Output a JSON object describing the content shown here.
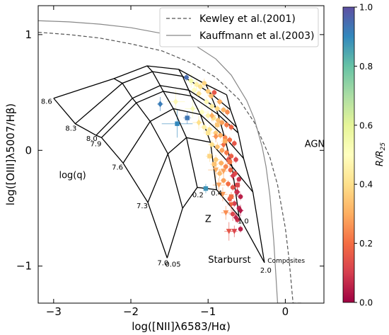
{
  "chart_data": {
    "type": "scatter",
    "title": "",
    "xlabel": "log([NII]λ6583/Hα)",
    "ylabel": "log([OIII]λ5007/Hβ)",
    "xlim": [
      -3.2,
      0.5
    ],
    "ylim": [
      -1.32,
      1.25
    ],
    "x_ticks": [
      -3,
      -2,
      -1,
      0
    ],
    "x_tick_labels": [
      "−3",
      "−2",
      "−1",
      "0"
    ],
    "y_ticks": [
      -1,
      0,
      1
    ],
    "y_tick_labels": [
      "−1",
      "0",
      "1"
    ],
    "legend": {
      "position": "top-right",
      "entries": [
        {
          "label": "Kewley et al.(2001)",
          "style": "dashed"
        },
        {
          "label": "Kauffmann et al.(2003)",
          "style": "solid"
        }
      ]
    },
    "colorbar": {
      "label": "R/R",
      "label_sub": "25",
      "range": [
        0.0,
        1.0
      ],
      "ticks": [
        0.0,
        0.2,
        0.4,
        0.6,
        0.8,
        1.0
      ],
      "tick_labels": [
        "0.0",
        "0.2",
        "0.4",
        "0.6",
        "0.8",
        "1.0"
      ],
      "colormap": "Spectral"
    },
    "annotations": {
      "agn": "AGN",
      "starburst": "Starburst",
      "composites": "Composites",
      "log_q": "log(q)",
      "z": "Z"
    },
    "grid": {
      "logq_labels": [
        "8.6",
        "8.3",
        "8.0",
        "7.9",
        "7.6",
        "7.3",
        "7.0"
      ],
      "z_labels": [
        "0.05",
        "0.2",
        "0.4",
        "1.0",
        "2.0"
      ],
      "logq_lines": [
        [
          [
            -3.0,
            0.45
          ],
          [
            -2.22,
            0.62
          ],
          [
            -1.79,
            0.73
          ],
          [
            -1.38,
            0.7
          ],
          [
            -1.03,
            0.57
          ],
          [
            -0.76,
            0.48
          ]
        ],
        [
          [
            -2.72,
            0.23
          ],
          [
            -2.11,
            0.58
          ],
          [
            -1.72,
            0.68
          ],
          [
            -1.33,
            0.64
          ],
          [
            -0.98,
            0.5
          ],
          [
            -0.71,
            0.35
          ]
        ],
        [
          [
            -2.45,
            0.13
          ],
          [
            -1.98,
            0.45
          ],
          [
            -1.62,
            0.56
          ],
          [
            -1.25,
            0.52
          ],
          [
            -0.9,
            0.37
          ],
          [
            -0.63,
            0.2
          ]
        ],
        [
          [
            -2.38,
            0.11
          ],
          [
            -1.93,
            0.41
          ],
          [
            -1.58,
            0.51
          ],
          [
            -1.22,
            0.47
          ],
          [
            -0.87,
            0.31
          ],
          [
            -0.61,
            0.15
          ]
        ],
        [
          [
            -2.1,
            -0.11
          ],
          [
            -1.75,
            0.25
          ],
          [
            -1.45,
            0.36
          ],
          [
            -1.1,
            0.31
          ],
          [
            -0.79,
            0.12
          ],
          [
            -0.54,
            -0.07
          ]
        ],
        [
          [
            -1.78,
            -0.45
          ],
          [
            -1.52,
            -0.03
          ],
          [
            -1.28,
            0.11
          ],
          [
            -0.97,
            0.07
          ],
          [
            -0.69,
            -0.14
          ],
          [
            -0.42,
            -0.36
          ]
        ],
        [
          [
            -1.53,
            -0.93
          ],
          [
            -1.33,
            -0.5
          ],
          [
            -1.14,
            -0.32
          ],
          [
            -0.89,
            -0.34
          ],
          [
            -0.6,
            -0.57
          ],
          [
            -0.27,
            -0.97
          ]
        ]
      ],
      "z_lines": [
        [
          [
            -3.0,
            0.45
          ],
          [
            -2.72,
            0.23
          ],
          [
            -2.45,
            0.13
          ],
          [
            -2.38,
            0.11
          ],
          [
            -2.1,
            -0.11
          ],
          [
            -1.78,
            -0.45
          ],
          [
            -1.53,
            -0.93
          ]
        ],
        [
          [
            -2.22,
            0.62
          ],
          [
            -2.11,
            0.58
          ],
          [
            -1.98,
            0.45
          ],
          [
            -1.93,
            0.41
          ],
          [
            -1.75,
            0.25
          ],
          [
            -1.52,
            -0.03
          ],
          [
            -1.33,
            -0.5
          ]
        ],
        [
          [
            -1.79,
            0.73
          ],
          [
            -1.72,
            0.68
          ],
          [
            -1.62,
            0.56
          ],
          [
            -1.58,
            0.51
          ],
          [
            -1.45,
            0.36
          ],
          [
            -1.28,
            0.11
          ],
          [
            -1.14,
            -0.32
          ]
        ],
        [
          [
            -1.38,
            0.7
          ],
          [
            -1.33,
            0.64
          ],
          [
            -1.25,
            0.52
          ],
          [
            -1.22,
            0.47
          ],
          [
            -1.1,
            0.31
          ],
          [
            -0.97,
            0.07
          ],
          [
            -0.89,
            -0.34
          ]
        ],
        [
          [
            -1.03,
            0.57
          ],
          [
            -0.98,
            0.5
          ],
          [
            -0.9,
            0.37
          ],
          [
            -0.87,
            0.31
          ],
          [
            -0.79,
            0.12
          ],
          [
            -0.69,
            -0.14
          ],
          [
            -0.6,
            -0.57
          ]
        ],
        [
          [
            -0.76,
            0.48
          ],
          [
            -0.71,
            0.35
          ],
          [
            -0.63,
            0.2
          ],
          [
            -0.61,
            0.15
          ],
          [
            -0.54,
            -0.07
          ],
          [
            -0.42,
            -0.36
          ],
          [
            -0.27,
            -0.97
          ]
        ]
      ]
    },
    "series": [
      {
        "name": "Kewley et al.(2001)",
        "style": "dashed",
        "color": "#555555",
        "x": [
          -3.2,
          -2.8,
          -2.4,
          -2.0,
          -1.6,
          -1.2,
          -0.9,
          -0.6,
          -0.4,
          -0.2,
          -0.1,
          0.0,
          0.05,
          0.1,
          0.15,
          0.2,
          0.23
        ],
        "y": [
          1.02,
          1.0,
          0.97,
          0.92,
          0.86,
          0.75,
          0.63,
          0.44,
          0.24,
          -0.06,
          -0.3,
          -0.67,
          -0.95,
          -1.32,
          -1.32,
          -1.32,
          -1.32
        ]
      },
      {
        "name": "Kauffmann et al.(2003)",
        "style": "solid",
        "color": "#888888",
        "x": [
          -3.2,
          -2.8,
          -2.4,
          -2.0,
          -1.6,
          -1.2,
          -0.9,
          -0.7,
          -0.5,
          -0.4,
          -0.3,
          -0.25,
          -0.2,
          -0.15,
          -0.1,
          -0.07
        ],
        "y": [
          1.12,
          1.11,
          1.09,
          1.06,
          1.01,
          0.92,
          0.79,
          0.65,
          0.43,
          0.27,
          0.03,
          -0.14,
          -0.39,
          -0.78,
          -1.32,
          -1.32
        ]
      }
    ],
    "points": [
      {
        "x": -1.28,
        "y": 0.63,
        "c": 0.95,
        "m": "o",
        "xe": 0.03,
        "ye": 0.03
      },
      {
        "x": -1.22,
        "y": 0.6,
        "c": 0.55,
        "m": "o",
        "xe": 0.06,
        "ye": 0.06
      },
      {
        "x": -1.15,
        "y": 0.57,
        "c": 0.45,
        "m": "o",
        "xe": 0.08,
        "ye": 0.05
      },
      {
        "x": -1.1,
        "y": 0.55,
        "c": 0.4,
        "m": "o",
        "xe": 0.05,
        "ye": 0.04
      },
      {
        "x": -1.05,
        "y": 0.58,
        "c": 0.38,
        "m": "o",
        "xe": 0.04,
        "ye": 0.04
      },
      {
        "x": -1.18,
        "y": 0.52,
        "c": 0.5,
        "m": "o",
        "xe": 0.05,
        "ye": 0.04
      },
      {
        "x": -1.12,
        "y": 0.49,
        "c": 0.42,
        "m": "o",
        "xe": 0.04,
        "ye": 0.03
      },
      {
        "x": -1.0,
        "y": 0.51,
        "c": 0.36,
        "m": "o",
        "xe": 0.05,
        "ye": 0.04
      },
      {
        "x": -0.96,
        "y": 0.47,
        "c": 0.33,
        "m": "o",
        "xe": 0.04,
        "ye": 0.03
      },
      {
        "x": -0.92,
        "y": 0.5,
        "c": 0.15,
        "m": "o",
        "xe": 0.03,
        "ye": 0.03
      },
      {
        "x": -0.85,
        "y": 0.42,
        "c": 0.3,
        "m": "o",
        "xe": 0.04,
        "ye": 0.03
      },
      {
        "x": -1.02,
        "y": 0.42,
        "c": 0.48,
        "m": "o",
        "xe": 0.04,
        "ye": 0.04
      },
      {
        "x": -0.95,
        "y": 0.38,
        "c": 0.44,
        "m": "o",
        "xe": 0.05,
        "ye": 0.04
      },
      {
        "x": -0.88,
        "y": 0.36,
        "c": 0.38,
        "m": "o",
        "xe": 0.04,
        "ye": 0.03
      },
      {
        "x": -0.8,
        "y": 0.35,
        "c": 0.32,
        "m": "o",
        "xe": 0.04,
        "ye": 0.03
      },
      {
        "x": -0.75,
        "y": 0.33,
        "c": 0.25,
        "m": "o",
        "xe": 0.03,
        "ye": 0.03
      },
      {
        "x": -1.08,
        "y": 0.33,
        "c": 0.5,
        "m": "o",
        "xe": 0.08,
        "ye": 0.06
      },
      {
        "x": -1.0,
        "y": 0.3,
        "c": 0.46,
        "m": "o",
        "xe": 0.05,
        "ye": 0.04
      },
      {
        "x": -0.93,
        "y": 0.28,
        "c": 0.4,
        "m": "o",
        "xe": 0.04,
        "ye": 0.03
      },
      {
        "x": -0.87,
        "y": 0.26,
        "c": 0.34,
        "m": "o",
        "xe": 0.04,
        "ye": 0.03
      },
      {
        "x": -0.82,
        "y": 0.24,
        "c": 0.28,
        "m": "o",
        "xe": 0.04,
        "ye": 0.03
      },
      {
        "x": -0.76,
        "y": 0.22,
        "c": 0.22,
        "m": "o",
        "xe": 0.03,
        "ye": 0.03
      },
      {
        "x": -0.7,
        "y": 0.2,
        "c": 0.18,
        "m": "o",
        "xe": 0.03,
        "ye": 0.03
      },
      {
        "x": -1.05,
        "y": 0.2,
        "c": 0.45,
        "m": "o",
        "xe": 0.05,
        "ye": 0.04
      },
      {
        "x": -0.98,
        "y": 0.18,
        "c": 0.42,
        "m": "o",
        "xe": 0.05,
        "ye": 0.04
      },
      {
        "x": -0.9,
        "y": 0.15,
        "c": 0.36,
        "m": "o",
        "xe": 0.04,
        "ye": 0.03
      },
      {
        "x": -0.84,
        "y": 0.13,
        "c": 0.3,
        "m": "o",
        "xe": 0.04,
        "ye": 0.03
      },
      {
        "x": -0.78,
        "y": 0.11,
        "c": 0.24,
        "m": "o",
        "xe": 0.03,
        "ye": 0.03
      },
      {
        "x": -0.72,
        "y": 0.09,
        "c": 0.2,
        "m": "o",
        "xe": 0.03,
        "ye": 0.03
      },
      {
        "x": -0.66,
        "y": 0.06,
        "c": 0.15,
        "m": "o",
        "xe": 0.03,
        "ye": 0.03
      },
      {
        "x": -0.95,
        "y": 0.05,
        "c": 0.4,
        "m": "o",
        "xe": 0.05,
        "ye": 0.04
      },
      {
        "x": -0.88,
        "y": 0.03,
        "c": 0.34,
        "m": "o",
        "xe": 0.04,
        "ye": 0.04
      },
      {
        "x": -0.82,
        "y": 0.0,
        "c": 0.28,
        "m": "o",
        "xe": 0.04,
        "ye": 0.03
      },
      {
        "x": -0.76,
        "y": -0.02,
        "c": 0.22,
        "m": "o",
        "xe": 0.03,
        "ye": 0.03
      },
      {
        "x": -0.7,
        "y": -0.05,
        "c": 0.17,
        "m": "o",
        "xe": 0.03,
        "ye": 0.03
      },
      {
        "x": -0.64,
        "y": -0.08,
        "c": 0.12,
        "m": "o",
        "xe": 0.03,
        "ye": 0.03
      },
      {
        "x": -0.9,
        "y": -0.08,
        "c": 0.36,
        "m": "o",
        "xe": 0.05,
        "ye": 0.04
      },
      {
        "x": -0.83,
        "y": -0.11,
        "c": 0.3,
        "m": "o",
        "xe": 0.04,
        "ye": 0.03
      },
      {
        "x": -0.77,
        "y": -0.14,
        "c": 0.24,
        "m": "o",
        "xe": 0.03,
        "ye": 0.03
      },
      {
        "x": -0.71,
        "y": -0.17,
        "c": 0.18,
        "m": "o",
        "xe": 0.03,
        "ye": 0.03
      },
      {
        "x": -0.65,
        "y": -0.2,
        "c": 0.13,
        "m": "o",
        "xe": 0.03,
        "ye": 0.03
      },
      {
        "x": -0.8,
        "y": -0.26,
        "c": 0.28,
        "m": "o",
        "xe": 0.04,
        "ye": 0.03
      },
      {
        "x": -0.74,
        "y": -0.29,
        "c": 0.2,
        "m": "o",
        "xe": 0.03,
        "ye": 0.03
      },
      {
        "x": -0.68,
        "y": -0.32,
        "c": 0.14,
        "m": "o",
        "xe": 0.03,
        "ye": 0.03
      },
      {
        "x": -0.63,
        "y": -0.36,
        "c": 0.1,
        "m": "o",
        "xe": 0.03,
        "ye": 0.03
      },
      {
        "x": -0.72,
        "y": -0.42,
        "c": 0.16,
        "m": "o",
        "xe": 0.03,
        "ye": 0.03
      },
      {
        "x": -0.66,
        "y": -0.46,
        "c": 0.1,
        "m": "o",
        "xe": 0.03,
        "ye": 0.03
      },
      {
        "x": -0.6,
        "y": -0.5,
        "c": 0.06,
        "m": "o",
        "xe": 0.03,
        "ye": 0.03
      },
      {
        "x": -0.68,
        "y": -0.55,
        "c": 0.12,
        "m": "o",
        "xe": 0.05,
        "ye": 0.06
      },
      {
        "x": -0.62,
        "y": -0.6,
        "c": 0.08,
        "m": "o",
        "xe": 0.03,
        "ye": 0.03
      },
      {
        "x": -0.58,
        "y": -0.68,
        "c": 0.05,
        "m": "o",
        "xe": 0.03,
        "ye": 0.03
      },
      {
        "x": -0.85,
        "y": -0.2,
        "c": 0.32,
        "m": "o",
        "xe": 0.05,
        "ye": 0.04
      },
      {
        "x": -0.6,
        "y": -0.25,
        "c": 0.08,
        "m": "o",
        "xe": 0.03,
        "ye": 0.03
      },
      {
        "x": -0.58,
        "y": -0.4,
        "c": 0.05,
        "m": "o",
        "xe": 0.03,
        "ye": 0.03
      },
      {
        "x": -1.62,
        "y": 0.4,
        "c": 0.92,
        "m": "D",
        "xe": 0.04,
        "ye": 0.06
      },
      {
        "x": -1.42,
        "y": 0.42,
        "c": 0.48,
        "m": "D",
        "xe": 0.12,
        "ye": 0.1
      },
      {
        "x": -1.2,
        "y": 0.36,
        "c": 0.52,
        "m": "D",
        "xe": 0.1,
        "ye": 0.08
      },
      {
        "x": -1.12,
        "y": 0.24,
        "c": 0.4,
        "m": "D",
        "xe": 0.08,
        "ye": 0.06
      },
      {
        "x": -0.95,
        "y": 0.3,
        "c": 0.3,
        "m": "D",
        "xe": 0.06,
        "ye": 0.05
      },
      {
        "x": -0.9,
        "y": 0.12,
        "c": 0.26,
        "m": "D",
        "xe": 0.05,
        "ye": 0.05
      },
      {
        "x": -0.8,
        "y": 0.05,
        "c": 0.2,
        "m": "D",
        "xe": 0.05,
        "ye": 0.05
      },
      {
        "x": -0.74,
        "y": -0.08,
        "c": 0.14,
        "m": "D",
        "xe": 0.04,
        "ye": 0.04
      },
      {
        "x": -0.68,
        "y": -0.22,
        "c": 0.1,
        "m": "D",
        "xe": 0.04,
        "ye": 0.04
      },
      {
        "x": -0.62,
        "y": -0.36,
        "c": 0.07,
        "m": "D",
        "xe": 0.04,
        "ye": 0.04
      },
      {
        "x": -0.58,
        "y": -0.52,
        "c": 0.04,
        "m": "D",
        "xe": 0.04,
        "ye": 0.05
      },
      {
        "x": -0.64,
        "y": -0.58,
        "c": 0.06,
        "m": "D",
        "xe": 0.03,
        "ye": 0.04
      },
      {
        "x": -1.4,
        "y": 0.23,
        "c": 0.9,
        "m": "s",
        "xe": 0.2,
        "ye": 0.12
      },
      {
        "x": -1.27,
        "y": 0.28,
        "c": 0.93,
        "m": "s",
        "xe": 0.05,
        "ye": 0.05
      },
      {
        "x": -1.03,
        "y": -0.33,
        "c": 0.88,
        "m": "s",
        "xe": 0.04,
        "ye": 0.04
      },
      {
        "x": -1.0,
        "y": 0.15,
        "c": 0.42,
        "m": "s",
        "xe": 0.06,
        "ye": 0.05
      },
      {
        "x": -0.88,
        "y": 0.22,
        "c": 0.35,
        "m": "s",
        "xe": 0.06,
        "ye": 0.05
      },
      {
        "x": -0.78,
        "y": 0.08,
        "c": 0.3,
        "m": "s",
        "xe": 0.05,
        "ye": 0.05
      },
      {
        "x": -0.72,
        "y": -0.1,
        "c": 0.22,
        "m": "s",
        "xe": 0.05,
        "ye": 0.05
      },
      {
        "x": -0.98,
        "y": -0.05,
        "c": 0.38,
        "m": "s",
        "xe": 0.05,
        "ye": 0.05
      },
      {
        "x": -0.7,
        "y": -0.4,
        "c": 0.2,
        "m": "s",
        "xe": 0.04,
        "ye": 0.04
      },
      {
        "x": -0.62,
        "y": -0.3,
        "c": 0.12,
        "m": "s",
        "xe": 0.04,
        "ye": 0.04
      },
      {
        "x": -0.92,
        "y": -0.12,
        "c": 0.34,
        "m": "s",
        "xe": 0.05,
        "ye": 0.05
      },
      {
        "x": -0.86,
        "y": -0.3,
        "c": 0.28,
        "m": "v",
        "xe": 0.08,
        "ye": 0.06
      },
      {
        "x": -0.81,
        "y": -0.38,
        "c": 0.27,
        "m": "v",
        "xe": 0.06,
        "ye": 0.06
      },
      {
        "x": -0.77,
        "y": -0.54,
        "c": 0.25,
        "m": "v",
        "xe": 0.06,
        "ye": 0.06
      },
      {
        "x": -0.7,
        "y": -0.47,
        "c": 0.18,
        "m": "v",
        "xe": 0.05,
        "ye": 0.06
      },
      {
        "x": -0.66,
        "y": -0.7,
        "c": 0.12,
        "m": "v",
        "xe": 0.04,
        "ye": 0.05
      },
      {
        "x": -0.73,
        "y": -0.7,
        "c": 0.15,
        "m": "v",
        "xe": 0.06,
        "ye": 0.08
      },
      {
        "x": -0.9,
        "y": -0.17,
        "c": 0.3,
        "m": "v",
        "xe": 0.1,
        "ye": 0.07
      },
      {
        "x": -0.8,
        "y": -0.18,
        "c": 0.28,
        "m": "v",
        "xe": 0.05,
        "ye": 0.05
      }
    ]
  }
}
